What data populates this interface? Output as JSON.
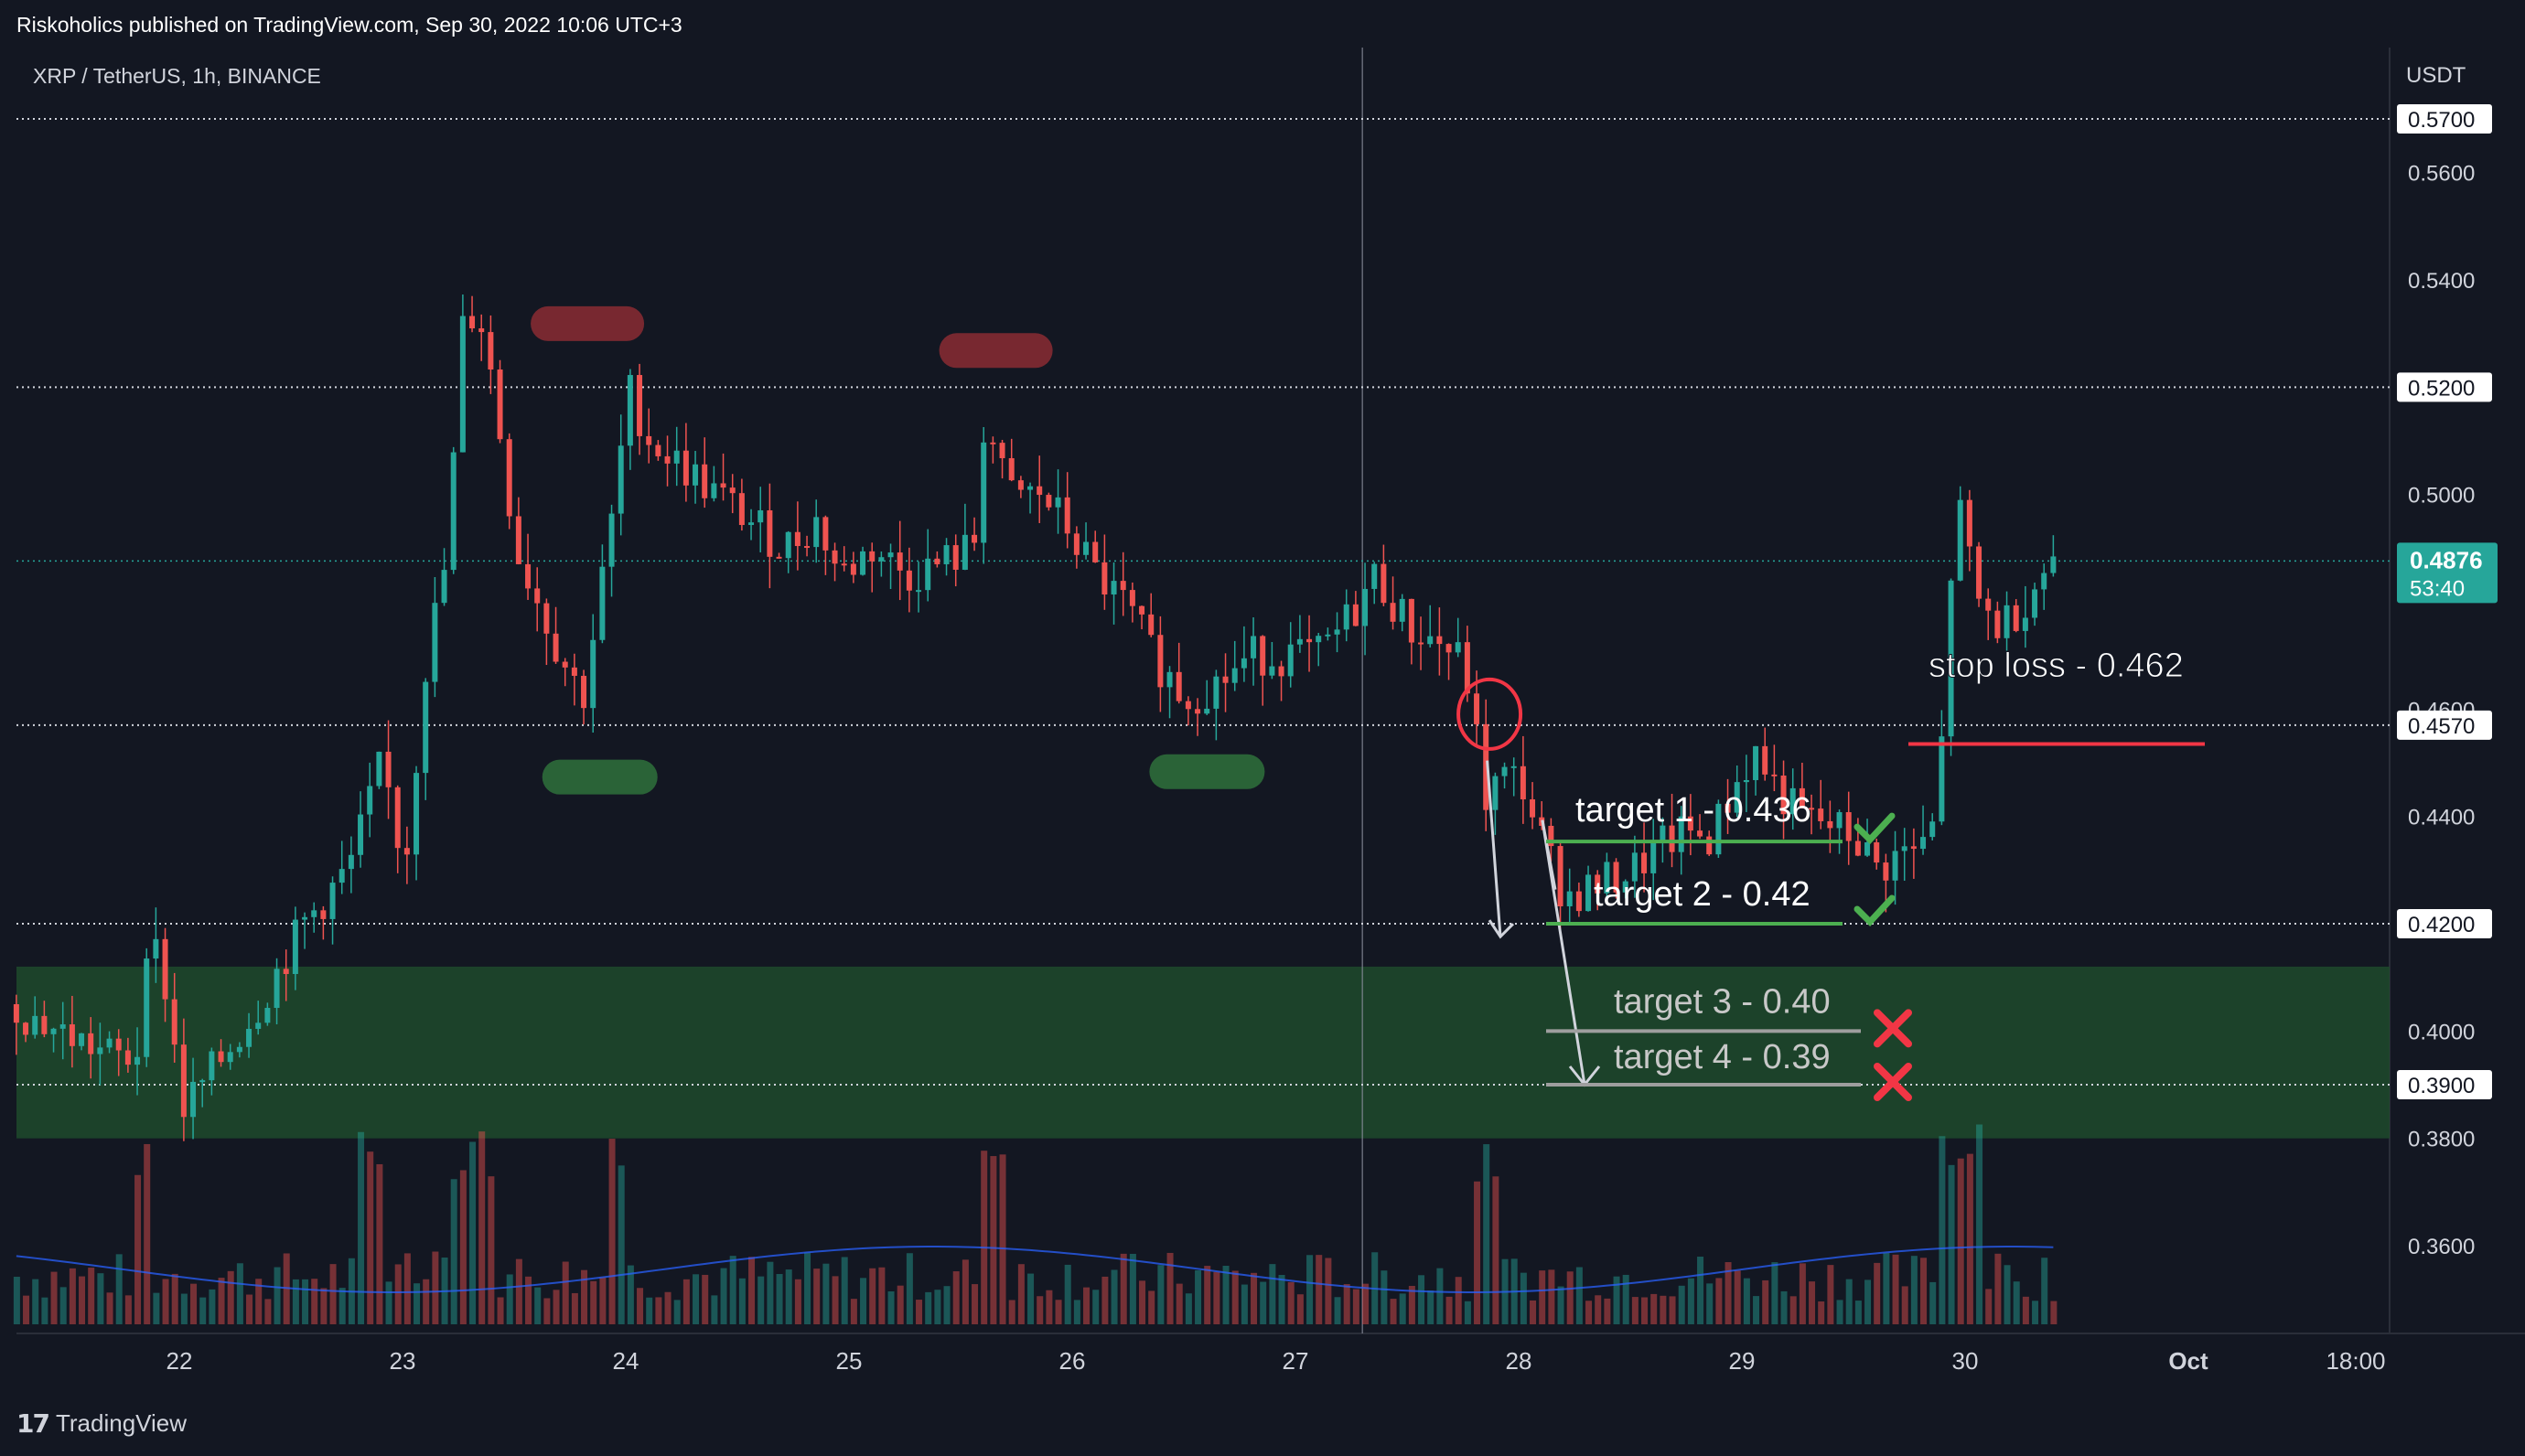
{
  "header": {
    "published": "Riskoholics published on TradingView.com, Sep 30, 2022 10:06 UTC+3"
  },
  "symbol": {
    "label": "XRP / TetherUS, 1h, BINANCE"
  },
  "footer": {
    "logo": "17",
    "brand": "TradingView"
  },
  "colors": {
    "background": "#131722",
    "up": "#26a69a",
    "down": "#ef5350",
    "zone": "#1e4a2c",
    "target_line": "#4caf50",
    "stop_line": "#f23645",
    "current_price": "#26a69a"
  },
  "chart_data": {
    "type": "candlestick",
    "currency": "USDT",
    "ylim": [
      0.345,
      0.575
    ],
    "y_ticks": [
      "0.5600",
      "0.5400",
      "0.5000",
      "0.4400",
      "0.4000",
      "0.3800",
      "0.3600"
    ],
    "x_ticks": [
      {
        "label": "22",
        "day": 22.0
      },
      {
        "label": "23",
        "day": 23.0
      },
      {
        "label": "24",
        "day": 24.0
      },
      {
        "label": "25",
        "day": 25.0
      },
      {
        "label": "26",
        "day": 26.0
      },
      {
        "label": "27",
        "day": 27.0
      },
      {
        "label": "28",
        "day": 28.0
      },
      {
        "label": "29",
        "day": 29.0
      },
      {
        "label": "30",
        "day": 30.0
      },
      {
        "label": "Oct",
        "day": 31.0
      },
      {
        "label": "18:00",
        "day": 31.75
      }
    ],
    "xlim_days": [
      21.27,
      32.0
    ],
    "horizontal_levels": [
      {
        "price": 0.57,
        "label": "0.5700"
      },
      {
        "price": 0.52,
        "label": "0.5200"
      },
      {
        "price": 0.457,
        "label": "0.4570"
      },
      {
        "price": 0.42,
        "label": "0.4200"
      },
      {
        "price": 0.39,
        "label": "0.3900"
      }
    ],
    "current_price": {
      "price": 0.4876,
      "label": "0.4876",
      "countdown": "53:40"
    },
    "partially_hidden_label": "0.4600",
    "price_path": [
      [
        21.27,
        0.405
      ],
      [
        21.5,
        0.4
      ],
      [
        21.75,
        0.395
      ],
      [
        21.85,
        0.395
      ],
      [
        21.9,
        0.42
      ],
      [
        22.0,
        0.405
      ],
      [
        22.05,
        0.385
      ],
      [
        22.2,
        0.393
      ],
      [
        22.4,
        0.405
      ],
      [
        22.6,
        0.42
      ],
      [
        22.8,
        0.43
      ],
      [
        22.95,
        0.45
      ],
      [
        23.05,
        0.43
      ],
      [
        23.15,
        0.47
      ],
      [
        23.25,
        0.49
      ],
      [
        23.3,
        0.53
      ],
      [
        23.38,
        0.535
      ],
      [
        23.45,
        0.52
      ],
      [
        23.55,
        0.49
      ],
      [
        23.65,
        0.48
      ],
      [
        23.75,
        0.47
      ],
      [
        23.85,
        0.462
      ],
      [
        23.92,
        0.48
      ],
      [
        24.0,
        0.5
      ],
      [
        24.05,
        0.52
      ],
      [
        24.15,
        0.51
      ],
      [
        24.3,
        0.505
      ],
      [
        24.45,
        0.5
      ],
      [
        24.6,
        0.495
      ],
      [
        24.75,
        0.49
      ],
      [
        24.9,
        0.495
      ],
      [
        25.0,
        0.485
      ],
      [
        25.15,
        0.49
      ],
      [
        25.3,
        0.485
      ],
      [
        25.45,
        0.487
      ],
      [
        25.6,
        0.49
      ],
      [
        25.65,
        0.515
      ],
      [
        25.75,
        0.5
      ],
      [
        25.9,
        0.5
      ],
      [
        26.0,
        0.495
      ],
      [
        26.15,
        0.485
      ],
      [
        26.3,
        0.478
      ],
      [
        26.4,
        0.47
      ],
      [
        26.55,
        0.462
      ],
      [
        26.7,
        0.465
      ],
      [
        26.85,
        0.47
      ],
      [
        27.0,
        0.47
      ],
      [
        27.15,
        0.47
      ],
      [
        27.3,
        0.478
      ],
      [
        27.4,
        0.485
      ],
      [
        27.55,
        0.475
      ],
      [
        27.7,
        0.472
      ],
      [
        27.8,
        0.468
      ],
      [
        27.85,
        0.455
      ],
      [
        27.9,
        0.442
      ],
      [
        27.95,
        0.447
      ],
      [
        28.05,
        0.447
      ],
      [
        28.15,
        0.435
      ],
      [
        28.25,
        0.425
      ],
      [
        28.4,
        0.427
      ],
      [
        28.55,
        0.43
      ],
      [
        28.7,
        0.435
      ],
      [
        28.8,
        0.437
      ],
      [
        28.9,
        0.436
      ],
      [
        29.0,
        0.445
      ],
      [
        29.1,
        0.452
      ],
      [
        29.2,
        0.445
      ],
      [
        29.3,
        0.44
      ],
      [
        29.45,
        0.438
      ],
      [
        29.55,
        0.436
      ],
      [
        29.65,
        0.43
      ],
      [
        29.75,
        0.433
      ],
      [
        29.85,
        0.434
      ],
      [
        29.92,
        0.44
      ],
      [
        29.97,
        0.48
      ],
      [
        30.0,
        0.5
      ],
      [
        30.05,
        0.49
      ],
      [
        30.1,
        0.48
      ],
      [
        30.2,
        0.475
      ],
      [
        30.3,
        0.48
      ],
      [
        30.42,
        0.4876
      ]
    ],
    "volume_days": [
      21.83,
      22.85,
      23.25,
      23.35,
      23.95,
      25.65,
      27.85,
      29.93,
      30.05
    ],
    "annotations": [
      {
        "text": "stop loss - 0.462",
        "price": 0.462,
        "color": "#f23645"
      },
      {
        "text": "target 1 - 0.436",
        "price": 0.436,
        "color": "#4caf50",
        "status": "check"
      },
      {
        "text": "target 2 - 0.42",
        "price": 0.42,
        "color": "#4caf50",
        "status": "check"
      },
      {
        "text": "target 3 - 0.40",
        "price": 0.4,
        "color": "#9e9e9e",
        "status": "cross"
      },
      {
        "text": "target 4 - 0.39",
        "price": 0.39,
        "color": "#9e9e9e",
        "status": "cross"
      }
    ],
    "resistance_marks": [
      {
        "day": 23.82,
        "price": 0.532
      },
      {
        "day": 25.65,
        "price": 0.527
      }
    ],
    "support_marks": [
      {
        "day": 23.88,
        "price": 0.4475
      },
      {
        "day": 26.6,
        "price": 0.4485
      }
    ],
    "zone": {
      "from": 0.38,
      "to": 0.412
    },
    "projection": {
      "from_day": 27.9,
      "from_price": 0.447,
      "mid_day": 28.0,
      "mid_price": 0.421,
      "up_day": 28.18,
      "up_price": 0.44,
      "to_day": 28.5,
      "to_price": 0.39
    },
    "highlight_circle": {
      "day": 27.82,
      "price": 0.457
    },
    "crosshair_day": 27.3
  }
}
